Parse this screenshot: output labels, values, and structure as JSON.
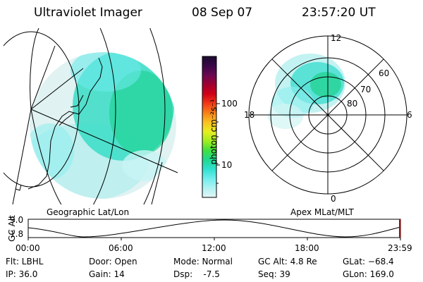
{
  "header": {
    "instrument": "Ultraviolet Imager",
    "date": "08 Sep 07",
    "time": "23:57:20 UT"
  },
  "geo_panel": {
    "label": "Geographic Lat/Lon"
  },
  "polar_panel": {
    "label": "Apex MLat/MLT",
    "mlt_labels": [
      "12",
      "18",
      "6",
      "0"
    ],
    "mlat_labels": [
      "60",
      "70",
      "80"
    ]
  },
  "colorbar": {
    "unit_label": "photon cm⁻²s⁻¹",
    "tick_labels": [
      "100",
      "10"
    ],
    "colors": [
      "#1a0a2e",
      "#3a0848",
      "#6a0850",
      "#a00030",
      "#d00018",
      "#f23818",
      "#f88018",
      "#fbc020",
      "#e8ee20",
      "#a0ee20",
      "#40e040",
      "#20d890",
      "#30e0d0",
      "#70eeee",
      "#b0f2f2",
      "#e2f6f6"
    ]
  },
  "gc_plot": {
    "ylabel": "GC Alt",
    "y_ticks": [
      "9.0",
      "1.8"
    ],
    "x_ticks": [
      "00:00",
      "06:00",
      "12:00",
      "18:00",
      "23:59"
    ]
  },
  "info": {
    "flt": "Flt: LBHL",
    "ip": "IP: 36.0",
    "door": "Door: Open",
    "gain": "Gain: 14",
    "mode": "Mode: Normal",
    "dsp": "Dsp:    -7.5",
    "gcalt": "GC Alt: 4.8 Re",
    "seq": "Seq: 39",
    "glat": "GLat: −68.4",
    "glon": "GLon: 169.0"
  }
}
